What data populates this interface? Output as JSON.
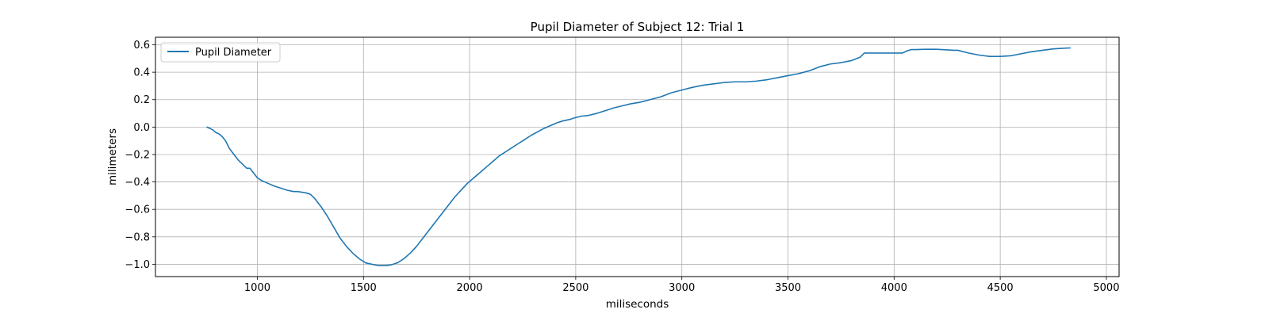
{
  "chart_data": {
    "type": "line",
    "title": "Pupil Diameter of Subject 12: Trial 1",
    "xlabel": "miliseconds",
    "ylabel": "milimeters",
    "xlim": [
      520,
      5060
    ],
    "ylim": [
      -1.09,
      0.655
    ],
    "xticks": [
      1000,
      1500,
      2000,
      2500,
      3000,
      3500,
      4000,
      4500,
      5000
    ],
    "yticks": [
      -1.0,
      -0.8,
      -0.6,
      -0.4,
      -0.2,
      0.0,
      0.2,
      0.4,
      0.6
    ],
    "ytick_labels": [
      "−1.0",
      "−0.8",
      "−0.6",
      "−0.4",
      "−0.2",
      "0.0",
      "0.2",
      "0.4",
      "0.6"
    ],
    "grid": true,
    "legend_position": "upper-left",
    "line_color": "#1f77b4",
    "series": [
      {
        "name": "Pupil Diameter",
        "x": [
          763,
          790,
          805,
          820,
          835,
          850,
          870,
          890,
          910,
          930,
          950,
          965,
          980,
          1000,
          1020,
          1050,
          1080,
          1110,
          1140,
          1170,
          1190,
          1210,
          1230,
          1250,
          1270,
          1300,
          1330,
          1360,
          1390,
          1420,
          1450,
          1480,
          1510,
          1540,
          1570,
          1600,
          1630,
          1660,
          1690,
          1720,
          1750,
          1780,
          1810,
          1840,
          1870,
          1900,
          1930,
          1960,
          1990,
          2020,
          2050,
          2080,
          2110,
          2140,
          2170,
          2200,
          2230,
          2260,
          2290,
          2320,
          2350,
          2380,
          2410,
          2440,
          2470,
          2500,
          2530,
          2560,
          2600,
          2640,
          2680,
          2720,
          2760,
          2800,
          2850,
          2900,
          2950,
          3000,
          3050,
          3100,
          3150,
          3200,
          3250,
          3300,
          3350,
          3400,
          3450,
          3500,
          3550,
          3600,
          3650,
          3700,
          3750,
          3800,
          3840,
          3860,
          3900,
          3950,
          4000,
          4040,
          4060,
          4080,
          4100,
          4150,
          4200,
          4250,
          4280,
          4300,
          4350,
          4400,
          4450,
          4500,
          4550,
          4600,
          4650,
          4700,
          4750,
          4800,
          4830
        ],
        "y": [
          0.0,
          -0.02,
          -0.04,
          -0.05,
          -0.07,
          -0.1,
          -0.16,
          -0.2,
          -0.24,
          -0.27,
          -0.3,
          -0.3,
          -0.33,
          -0.37,
          -0.39,
          -0.41,
          -0.43,
          -0.445,
          -0.46,
          -0.47,
          -0.47,
          -0.475,
          -0.48,
          -0.49,
          -0.52,
          -0.58,
          -0.65,
          -0.73,
          -0.81,
          -0.87,
          -0.92,
          -0.96,
          -0.99,
          -1.0,
          -1.01,
          -1.01,
          -1.005,
          -0.99,
          -0.96,
          -0.92,
          -0.87,
          -0.81,
          -0.75,
          -0.69,
          -0.63,
          -0.57,
          -0.51,
          -0.46,
          -0.41,
          -0.37,
          -0.33,
          -0.29,
          -0.25,
          -0.21,
          -0.18,
          -0.15,
          -0.12,
          -0.09,
          -0.06,
          -0.035,
          -0.01,
          0.01,
          0.03,
          0.045,
          0.055,
          0.07,
          0.08,
          0.085,
          0.1,
          0.12,
          0.14,
          0.155,
          0.17,
          0.18,
          0.2,
          0.22,
          0.25,
          0.27,
          0.29,
          0.305,
          0.315,
          0.325,
          0.33,
          0.33,
          0.335,
          0.345,
          0.36,
          0.375,
          0.39,
          0.41,
          0.44,
          0.46,
          0.47,
          0.485,
          0.51,
          0.54,
          0.54,
          0.54,
          0.54,
          0.54,
          0.555,
          0.565,
          0.565,
          0.567,
          0.567,
          0.563,
          0.56,
          0.56,
          0.54,
          0.525,
          0.515,
          0.515,
          0.52,
          0.535,
          0.55,
          0.56,
          0.57,
          0.575,
          0.577
        ]
      }
    ]
  }
}
